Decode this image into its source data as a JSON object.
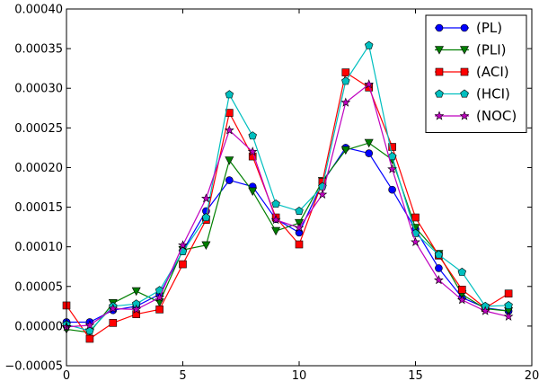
{
  "chart_data": {
    "type": "line",
    "title": "",
    "xlabel": "",
    "ylabel": "",
    "xlim": [
      0,
      20
    ],
    "ylim": [
      -5e-05,
      0.0004
    ],
    "xticks": [
      0,
      5,
      10,
      15,
      20
    ],
    "xtick_labels": [
      "0",
      "5",
      "10",
      "15",
      "20"
    ],
    "yticks": [
      -5e-05,
      0,
      5e-05,
      0.0001,
      0.00015,
      0.0002,
      0.00025,
      0.0003,
      0.00035,
      0.0004
    ],
    "ytick_labels": [
      "−0.00005",
      "0.00000",
      "0.00005",
      "0.00010",
      "0.00015",
      "0.00020",
      "0.00025",
      "0.00030",
      "0.00035",
      "0.00040"
    ],
    "grid": false,
    "legend_position": "top-right",
    "x": [
      0,
      1,
      2,
      3,
      4,
      5,
      6,
      7,
      8,
      9,
      10,
      11,
      12,
      13,
      14,
      15,
      16,
      17,
      18,
      19
    ],
    "series": [
      {
        "name": "(PL)",
        "color": "#0000ff",
        "marker": "circle",
        "values": [
          5e-06,
          5e-06,
          2e-05,
          2.5e-05,
          4e-05,
          9.5e-05,
          0.000145,
          0.000184,
          0.000176,
          0.000135,
          0.000118,
          0.000181,
          0.000225,
          0.000218,
          0.000172,
          0.000122,
          7.3e-05,
          3.6e-05,
          2.3e-05,
          1.9e-05
        ]
      },
      {
        "name": "(PLI)",
        "color": "#007f00",
        "marker": "triangle-down",
        "values": [
          -4e-06,
          -8e-06,
          2.9e-05,
          4.4e-05,
          3e-05,
          9.6e-05,
          0.000102,
          0.000209,
          0.00017,
          0.00012,
          0.00013,
          0.000183,
          0.000222,
          0.000231,
          0.00021,
          0.000124,
          9.1e-05,
          4e-05,
          2.2e-05,
          1.9e-05
        ]
      },
      {
        "name": "(ACI)",
        "color": "#ff0000",
        "marker": "square",
        "values": [
          2.6e-05,
          -1.6e-05,
          4e-06,
          1.5e-05,
          2.1e-05,
          7.8e-05,
          0.000134,
          0.000269,
          0.000214,
          0.000137,
          0.000103,
          0.000182,
          0.00032,
          0.000301,
          0.000226,
          0.000137,
          8.9e-05,
          4.6e-05,
          2.3e-05,
          4.1e-05
        ]
      },
      {
        "name": "(HCI)",
        "color": "#00bfbf",
        "marker": "pentagon",
        "values": [
          2e-06,
          -6e-06,
          2.5e-05,
          2.8e-05,
          4.5e-05,
          9.4e-05,
          0.000137,
          0.000292,
          0.00024,
          0.000154,
          0.000145,
          0.000176,
          0.000309,
          0.000354,
          0.000214,
          0.000117,
          9e-05,
          6.8e-05,
          2.5e-05,
          2.6e-05
        ]
      },
      {
        "name": "(NOC)",
        "color": "#bf00bf",
        "marker": "star",
        "values": [
          -1e-06,
          1e-06,
          2.2e-05,
          2.1e-05,
          3.6e-05,
          0.000102,
          0.000161,
          0.000247,
          0.00022,
          0.000134,
          0.000124,
          0.000166,
          0.000282,
          0.000305,
          0.000198,
          0.000106,
          5.8e-05,
          3.3e-05,
          1.9e-05,
          1.2e-05
        ]
      }
    ]
  }
}
